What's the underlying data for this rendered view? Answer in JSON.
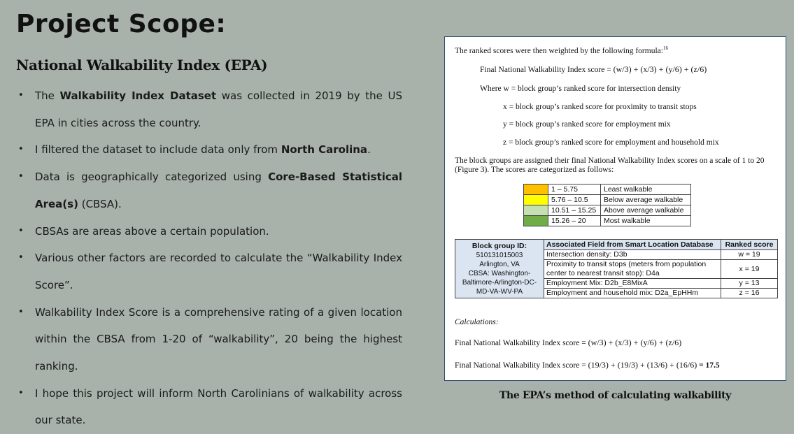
{
  "slide": {
    "title": "Project Scope:",
    "subtitle": "National Walkability Index (EPA)"
  },
  "bullets": [
    {
      "pre": "The ",
      "bold": "Walkability Index Dataset",
      "post": " was collected in 2019 by the US EPA in cities across the country."
    },
    {
      "pre": "I filtered the dataset to include data only from ",
      "bold": "North Carolina",
      "post": "."
    },
    {
      "pre": "Data is geographically categorized using ",
      "bold": "Core-Based Statistical Area(s)",
      "post": " (CBSA)."
    },
    {
      "pre": "CBSAs are areas above a certain population.",
      "bold": "",
      "post": ""
    },
    {
      "pre": "Various other factors are recorded to calculate the “Walkability Index Score”.",
      "bold": "",
      "post": ""
    },
    {
      "pre": "Walkability Index Score is a comprehensive rating of a given location within the CBSA from 1-20 of “walkability”, 20 being the highest ranking.",
      "bold": "",
      "post": ""
    },
    {
      "pre": "I hope this project will inform North Carolinians of walkability across our state.",
      "bold": "",
      "post": ""
    }
  ],
  "figure": {
    "intro": "The ranked scores were then weighted by the following formula:",
    "intro_sup": "16",
    "formula_label": "Final National Walkability Index score = ",
    "formula_expr": "(w/3) + (x/3) + (y/6) + (z/6)",
    "where_w": "Where w = block group’s ranked score for intersection density",
    "where_x": "x = block group’s ranked score for proximity to transit stops",
    "where_y": "y = block group’s ranked score for employment mix",
    "where_z": "z = block group’s ranked score for employment and household mix",
    "assign_line1": "The block groups are assigned their final National Walkability Index scores on a scale of 1 to 20",
    "assign_line2": "(Figure 3). The scores are categorized as follows:",
    "scale": [
      {
        "range": "1 – 5.75",
        "label": "Least walkable",
        "color": "#ffc000"
      },
      {
        "range": "5.76 – 10.5",
        "label": "Below average walkable",
        "color": "#ffff00"
      },
      {
        "range": "10.51 – 15.25",
        "label": "Above average walkable",
        "color": "#c6e0b4"
      },
      {
        "range": "15.26 – 20",
        "label": "Most walkable",
        "color": "#70ad47"
      }
    ],
    "table": {
      "block_label": "Block group ID:",
      "block_lines": [
        "510131015003",
        "Arlington, VA",
        "CBSA: Washington-",
        "Baltimore-Arlington-DC-",
        "MD-VA-WV-PA"
      ],
      "header_field": "Associated Field from Smart Location Database",
      "header_rank": "Ranked score",
      "rows": [
        {
          "field": "Intersection density: D3b",
          "rank": "w = 19"
        },
        {
          "field": "Proximity to transit stops (meters from population center to nearest transit stop): D4a",
          "rank": "x = 19"
        },
        {
          "field": "Employment Mix: D2b_E8MixA",
          "rank": "y = 13"
        },
        {
          "field": "Employment and household mix: D2a_EpHHm",
          "rank": "z = 16"
        }
      ]
    },
    "calc_label": "Calculations:",
    "calc1_label": "Final National Walkability Index score = ",
    "calc1_expr": "(w/3) + (x/3) + (y/6) + (z/6)",
    "calc2_label": "Final National Walkability Index score = ",
    "calc2_expr": "(19/3) + (19/3) + (13/6) + (16/6)",
    "calc2_result": "= 17.5"
  },
  "caption": "The EPA’s method of calculating walkability"
}
